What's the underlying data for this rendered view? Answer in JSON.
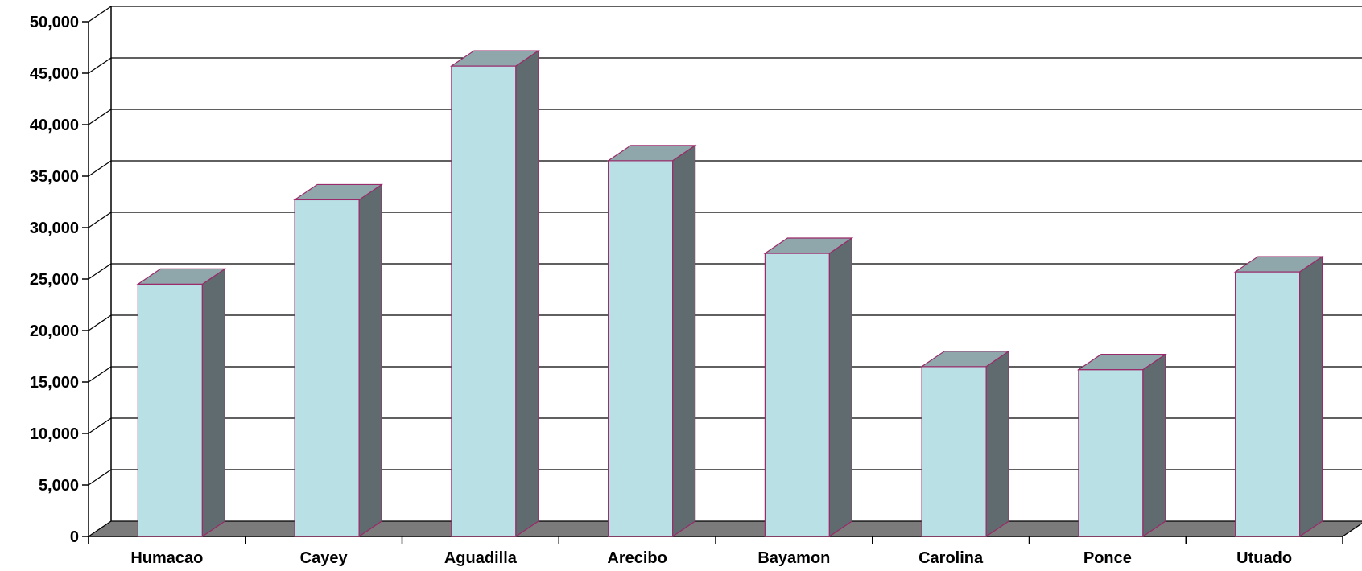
{
  "chart_data": {
    "type": "bar",
    "style": "3d-column",
    "categories": [
      "Humacao",
      "Cayey",
      "Aguadilla",
      "Arecibo",
      "Bayamon",
      "Carolina",
      "Ponce",
      "Utuado"
    ],
    "series": [
      {
        "values": [
          24500,
          32700,
          45700,
          36500,
          27500,
          16500,
          16200,
          25700
        ]
      }
    ],
    "title": "",
    "xlabel": "",
    "ylabel": "",
    "ylim": [
      0,
      50000
    ],
    "y_ticks": [
      "0",
      "5,000",
      "10,000",
      "15,000",
      "20,000",
      "25,000",
      "30,000",
      "35,000",
      "40,000",
      "45,000",
      "50,000"
    ],
    "grid": true,
    "legend": "none",
    "colors": {
      "bar_front": "#b9e0e4",
      "bar_side": "#5f6b6e",
      "bar_top": "#8fa6aa",
      "bar_edge": "#9a2a6a",
      "floor": "#7b7b7b",
      "grid": "#000000"
    }
  }
}
